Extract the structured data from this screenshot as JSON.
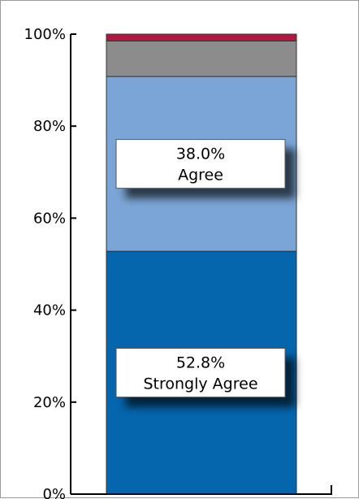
{
  "chart_data": {
    "type": "bar",
    "stacked": true,
    "categories": [
      ""
    ],
    "series": [
      {
        "name": "Strongly Agree",
        "values": [
          52.8
        ],
        "color": "#0565ad"
      },
      {
        "name": "Agree",
        "values": [
          38.0
        ],
        "color": "#7ba5d6"
      },
      {
        "name": "",
        "values": [
          7.7
        ],
        "color": "#8c8c8c"
      },
      {
        "name": "",
        "values": [
          1.5
        ],
        "color": "#b3173f"
      }
    ],
    "data_labels": [
      {
        "value_text": "52.8%",
        "name_text": "Strongly Agree"
      },
      {
        "value_text": "38.0%",
        "name_text": "Agree"
      }
    ],
    "y_ticks": [
      "0%",
      "20%",
      "40%",
      "60%",
      "80%",
      "100%"
    ],
    "ylim": [
      0,
      100
    ],
    "grid": false,
    "legend": "none",
    "title": "",
    "xlabel": "",
    "ylabel": ""
  }
}
